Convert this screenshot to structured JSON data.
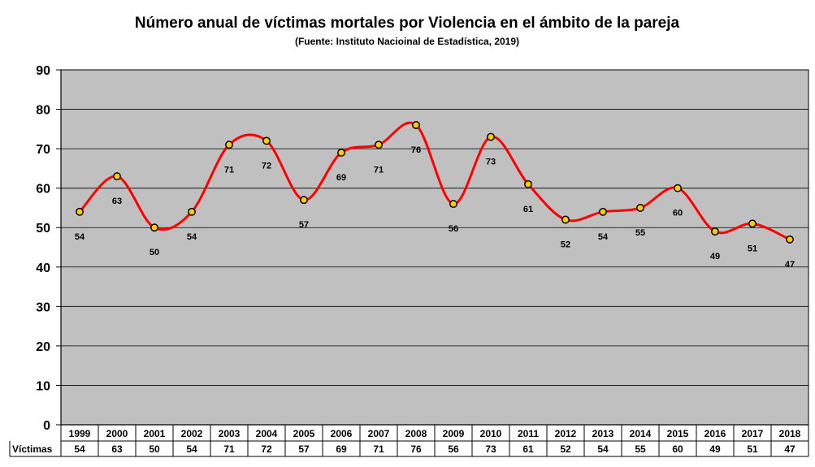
{
  "chart_data": {
    "type": "line",
    "title": "Número anual de víctimas mortales por Violencia en el ámbito de la pareja",
    "subtitle": "(Fuente: Instituto Nacioinal de Estadística, 2019)",
    "categories": [
      "1999",
      "2000",
      "2001",
      "2002",
      "2003",
      "2004",
      "2005",
      "2006",
      "2007",
      "2008",
      "2009",
      "2010",
      "2011",
      "2012",
      "2013",
      "2014",
      "2015",
      "2016",
      "2017",
      "2018"
    ],
    "series": [
      {
        "name": "Víctimas",
        "values": [
          54,
          63,
          50,
          54,
          71,
          72,
          57,
          69,
          71,
          76,
          56,
          73,
          61,
          52,
          54,
          55,
          60,
          49,
          51,
          47
        ]
      }
    ],
    "ylim": [
      0,
      90
    ],
    "yticks": [
      0,
      10,
      20,
      30,
      40,
      50,
      60,
      70,
      80,
      90
    ],
    "grid": true,
    "data_table": true,
    "colors": {
      "plot_background": "#c0c0c0",
      "line": "#ff0000",
      "marker_fill": "#ffcc00",
      "marker_edge": "#000000",
      "gridline": "#000000"
    }
  }
}
